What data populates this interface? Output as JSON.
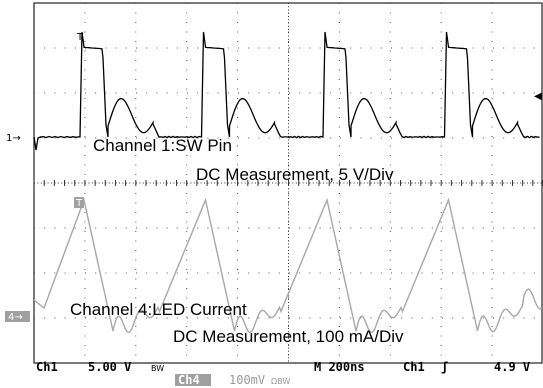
{
  "chart_data": {
    "type": "line",
    "title": "",
    "grid": true,
    "timebase_label": "M 200ns",
    "trigger_label": "Ch1",
    "trigger_level_label": "4.9 V",
    "series": [
      {
        "name": "Channel 1:SW Pin",
        "channel": "Ch1",
        "scale_label": "5.00 V",
        "coupling_label": "DC Measurement, 5 V/Div",
        "color": "#000000",
        "marker_label": "1",
        "period_ns": 480,
        "shape": "switch-node square wave with ringing"
      },
      {
        "name": "Channel 4:LED Current",
        "channel": "Ch4",
        "scale_label": "100mV",
        "coupling_label": "DC Measurement, 100 mA/Div",
        "color": "#a0a0a0",
        "marker_label": "4",
        "period_ns": 480,
        "shape": "triangular ripple"
      }
    ]
  },
  "status_bar": {
    "ch1_label": "Ch1",
    "ch1_scale": "5.00 V",
    "ch1_suffix": "BW",
    "timebase": "M 200ns",
    "trigger_channel": "Ch1",
    "trigger_slope": "ʃ",
    "trigger_level": "4.9 V",
    "ch4_label": "Ch4",
    "ch4_scale": "100mV",
    "ch4_suffix": "ΩBW"
  },
  "annotations": {
    "ch1_name": "Channel 1:SW Pin",
    "ch1_measure": "DC Measurement, 5 V/Div",
    "ch4_name": "Channel 4:LED Current",
    "ch4_measure": "DC Measurement, 100 mA/Div"
  },
  "markers": {
    "ch1_ground": "1→",
    "ch4_ground": "4→",
    "trigger_top_ch1": "T",
    "trigger_top_ch4": "T",
    "trigger_level_arrow": "◀"
  },
  "colors": {
    "ch1": "#000000",
    "ch4": "#a0a0a0",
    "grid": "#555555",
    "marker_bg": "#a0a0a0"
  }
}
